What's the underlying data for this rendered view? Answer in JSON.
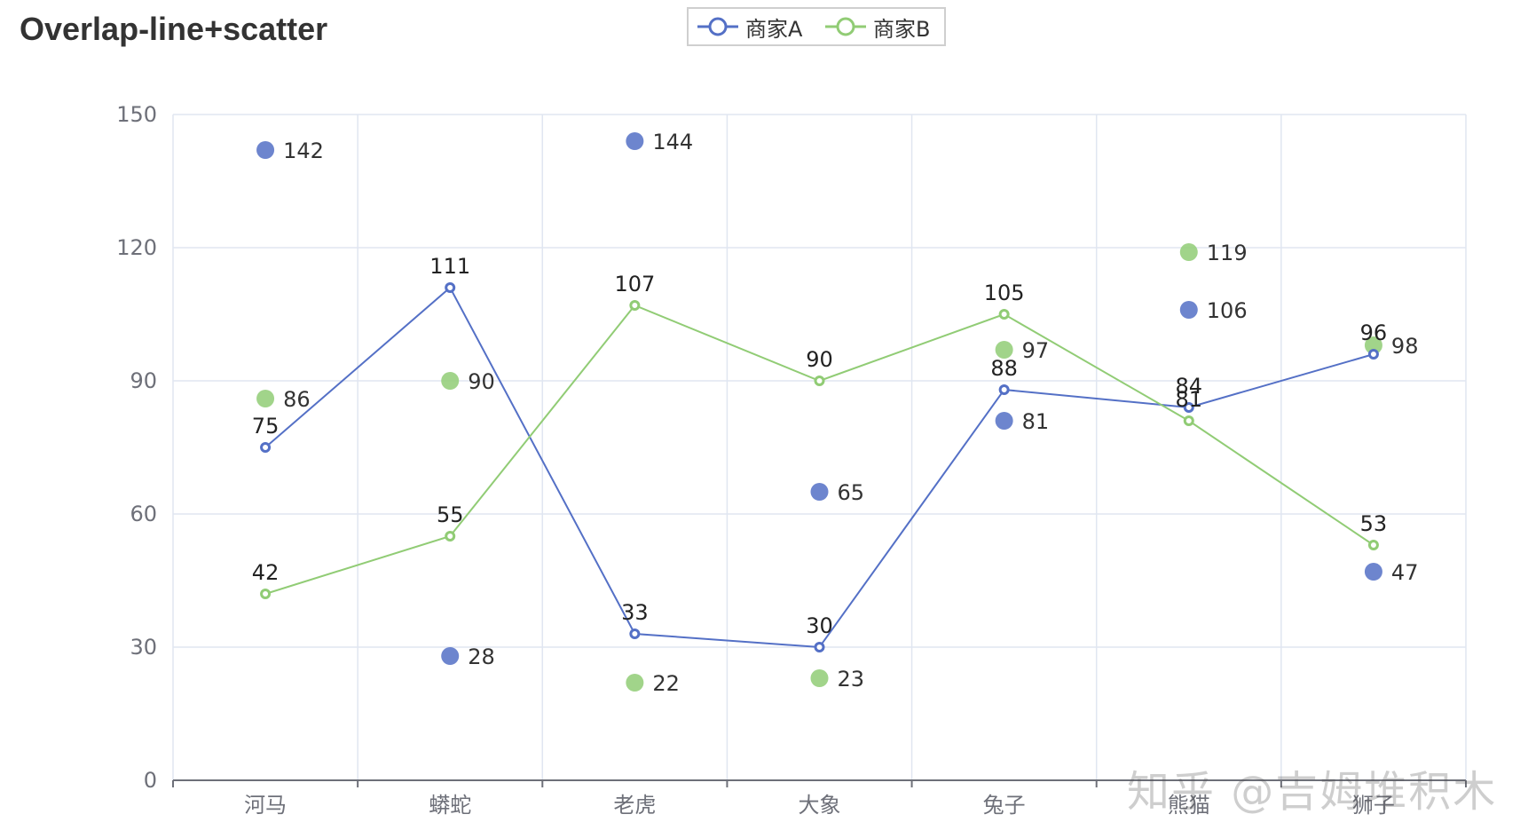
{
  "title": "Overlap-line+scatter",
  "legend": [
    {
      "name": "商家A",
      "color": "#5470c6"
    },
    {
      "name": "商家B",
      "color": "#91cc75"
    }
  ],
  "watermark": "知乎 @吉姆堆积木",
  "chart_data": {
    "type": "line",
    "categories": [
      "河马",
      "蟒蛇",
      "老虎",
      "大象",
      "兔子",
      "熊猫",
      "狮子"
    ],
    "ylim": [
      0,
      150
    ],
    "yticks": [
      0,
      30,
      60,
      90,
      120,
      150
    ],
    "grid": true,
    "legend_position": "top-center",
    "series": [
      {
        "name": "商家A",
        "type": "line",
        "color": "#5470c6",
        "values": [
          75,
          111,
          33,
          30,
          88,
          84,
          96
        ]
      },
      {
        "name": "商家B",
        "type": "line",
        "color": "#91cc75",
        "values": [
          42,
          55,
          107,
          90,
          105,
          81,
          53
        ]
      },
      {
        "name": "商家A",
        "type": "scatter",
        "color": "#5470c6",
        "values": [
          142,
          28,
          144,
          65,
          81,
          106,
          47
        ]
      },
      {
        "name": "商家B",
        "type": "scatter",
        "color": "#91cc75",
        "values": [
          86,
          90,
          22,
          23,
          97,
          119,
          98
        ]
      }
    ]
  }
}
